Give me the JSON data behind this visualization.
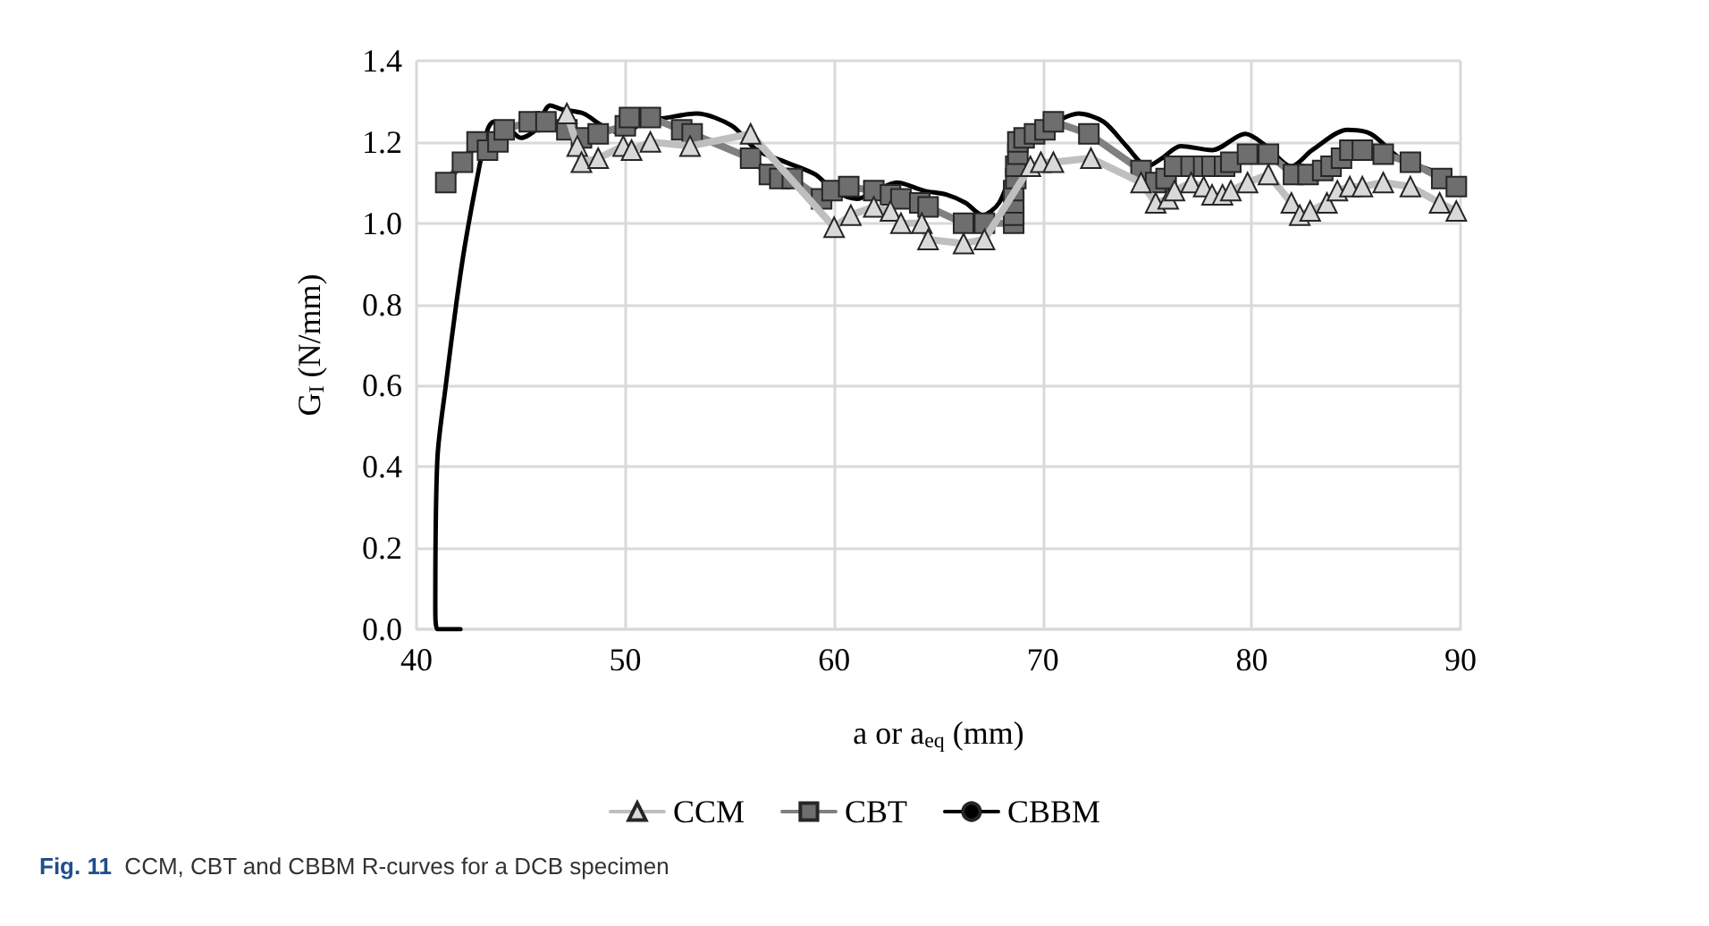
{
  "chart_data": {
    "type": "line",
    "xlabel": "a or a$_{eq}$ (mm)",
    "ylabel": "G$_{I}$ (N/mm)",
    "annotations": [
      "Fig. 11  CCM, CBT and CBBM R-curves for a DCB specimen"
    ],
    "xlim": [
      40,
      90
    ],
    "xticks": [
      40,
      50,
      60,
      70,
      80,
      90
    ],
    "ylim": [
      0,
      1.4
    ],
    "yticks": [
      {
        "value": 0,
        "label": "0.0"
      },
      {
        "value": 0.2,
        "label": "0.2"
      },
      {
        "value": 0.4,
        "label": "0.4"
      },
      {
        "value": 0.6,
        "label": "0.6"
      },
      {
        "value": 0.8,
        "label": "0.8"
      },
      {
        "value": 1,
        "label": "1.0"
      },
      {
        "value": 1.2,
        "label": "1.2"
      },
      {
        "value": 1.4,
        "label": "1.4"
      }
    ],
    "grid": true,
    "legend": "bottom",
    "series": [
      {
        "name": "CCM",
        "color": "#bfbfbf",
        "marker": "triangle",
        "x": [
          47.2,
          47.7,
          47.9,
          48.7,
          49.9,
          50.3,
          51.2,
          53.1,
          56.0,
          60.0,
          60.8,
          61.9,
          62.7,
          63.2,
          64.2,
          64.5,
          66.2,
          67.2,
          69.4,
          69.9,
          70.5,
          72.3,
          74.7,
          75.4,
          76.0,
          76.3,
          77.1,
          77.7,
          78.1,
          78.6,
          79.0,
          79.8,
          80.8,
          81.9,
          82.3,
          82.8,
          83.6,
          84.1,
          84.7,
          85.3,
          86.3,
          87.6,
          89.0,
          89.8
        ],
        "values": [
          1.27,
          1.19,
          1.15,
          1.16,
          1.19,
          1.18,
          1.2,
          1.19,
          1.22,
          0.99,
          1.02,
          1.04,
          1.03,
          1.0,
          1.0,
          0.96,
          0.95,
          0.96,
          1.14,
          1.15,
          1.15,
          1.16,
          1.1,
          1.05,
          1.06,
          1.08,
          1.1,
          1.09,
          1.07,
          1.07,
          1.08,
          1.1,
          1.12,
          1.05,
          1.02,
          1.03,
          1.05,
          1.08,
          1.09,
          1.09,
          1.1,
          1.09,
          1.05,
          1.03
        ]
      },
      {
        "name": "CBT",
        "color": "#808080",
        "marker": "square",
        "x": [
          41.4,
          42.2,
          42.9,
          43.4,
          43.9,
          44.2,
          45.4,
          46.2,
          47.2,
          47.9,
          48.7,
          50.0,
          50.2,
          51.2,
          52.7,
          53.2,
          56.0,
          56.9,
          57.4,
          58.0,
          59.4,
          59.9,
          60.7,
          61.9,
          62.7,
          63.2,
          64.1,
          64.5,
          66.2,
          67.2,
          68.6,
          68.6,
          68.6,
          68.6,
          68.7,
          68.7,
          68.8,
          68.8,
          69.1,
          69.6,
          70.1,
          70.5,
          72.2,
          74.7,
          75.4,
          75.9,
          76.3,
          77.1,
          77.7,
          78.1,
          78.7,
          79.0,
          79.8,
          80.8,
          82.0,
          82.7,
          83.4,
          83.8,
          84.3,
          84.7,
          85.3,
          86.3,
          87.6,
          89.1,
          89.8
        ],
        "values": [
          1.1,
          1.15,
          1.2,
          1.18,
          1.2,
          1.23,
          1.25,
          1.25,
          1.23,
          1.21,
          1.22,
          1.24,
          1.26,
          1.26,
          1.23,
          1.22,
          1.16,
          1.12,
          1.11,
          1.11,
          1.06,
          1.08,
          1.09,
          1.08,
          1.07,
          1.06,
          1.05,
          1.04,
          1.0,
          1.0,
          1.0,
          1.02,
          1.05,
          1.08,
          1.11,
          1.14,
          1.17,
          1.2,
          1.21,
          1.22,
          1.23,
          1.25,
          1.22,
          1.13,
          1.1,
          1.11,
          1.14,
          1.14,
          1.14,
          1.14,
          1.14,
          1.15,
          1.17,
          1.17,
          1.12,
          1.12,
          1.13,
          1.14,
          1.16,
          1.18,
          1.18,
          1.17,
          1.15,
          1.11,
          1.09
        ]
      },
      {
        "name": "CBBM",
        "color": "#000000",
        "marker": "none",
        "x": [
          42.1,
          41.0,
          40.9,
          41.0,
          41.4,
          41.9,
          42.3,
          42.9,
          43.4,
          43.7,
          44.3,
          45.0,
          45.7,
          46.4,
          47.0,
          48.0,
          48.9,
          49.9,
          50.9,
          52.0,
          53.4,
          55.1,
          56.3,
          57.7,
          59.1,
          60.0,
          61.1,
          62.0,
          63.0,
          64.3,
          65.4,
          66.3,
          67.1,
          67.9,
          68.6,
          69.4,
          70.6,
          71.7,
          72.9,
          74.0,
          75.0,
          75.7,
          76.6,
          78.1,
          79.7,
          80.7,
          81.9,
          82.9,
          84.6,
          85.7,
          87.1,
          88.6,
          90.0
        ],
        "values": [
          0,
          0,
          0.05,
          0.42,
          0.6,
          0.8,
          0.94,
          1.11,
          1.23,
          1.25,
          1.24,
          1.21,
          1.23,
          1.29,
          1.28,
          1.27,
          1.24,
          1.22,
          1.25,
          1.26,
          1.27,
          1.24,
          1.18,
          1.15,
          1.12,
          1.08,
          1.06,
          1.08,
          1.1,
          1.08,
          1.07,
          1.05,
          1.02,
          1.05,
          1.14,
          1.22,
          1.25,
          1.27,
          1.25,
          1.19,
          1.14,
          1.16,
          1.19,
          1.18,
          1.22,
          1.19,
          1.14,
          1.18,
          1.23,
          1.22,
          1.16,
          1.13,
          1.1
        ]
      }
    ]
  }
}
